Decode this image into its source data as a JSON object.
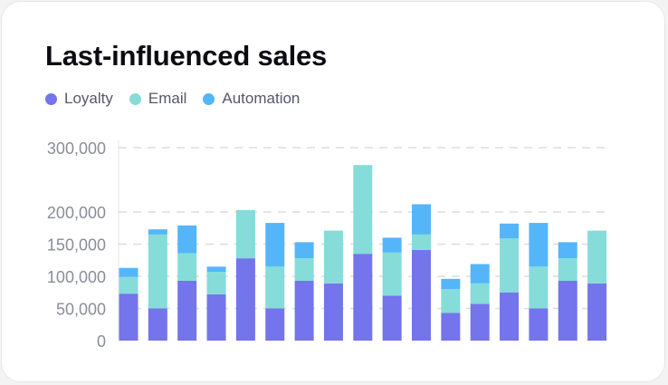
{
  "chart_data": {
    "type": "bar",
    "stacked": true,
    "title": "Last-influenced sales",
    "xlabel": "",
    "ylabel": "",
    "ylim": [
      0,
      300000
    ],
    "y_ticks": [
      0,
      50000,
      100000,
      150000,
      200000,
      300000
    ],
    "y_tick_labels": [
      "0",
      "50,000",
      "100,000",
      "150,000",
      "200,000",
      "300,000"
    ],
    "grid": true,
    "legend_position": "top-left",
    "series": [
      {
        "name": "Loyalty",
        "color": "#7474ec",
        "values": [
          73000,
          50000,
          93000,
          72000,
          128000,
          50000,
          93000,
          89000,
          135000,
          70000,
          141000,
          43000,
          57000,
          75000,
          50000,
          93000,
          89000
        ]
      },
      {
        "name": "Email",
        "color": "#85dcd9",
        "values": [
          26000,
          115000,
          43000,
          35000,
          75000,
          65000,
          35000,
          82000,
          138000,
          67000,
          24000,
          37000,
          32000,
          84000,
          65000,
          35000,
          82000
        ]
      },
      {
        "name": "Automation",
        "color": "#55b5f9",
        "values": [
          14000,
          8000,
          43000,
          8000,
          0,
          68000,
          25000,
          0,
          0,
          23000,
          47000,
          16000,
          30000,
          23000,
          68000,
          25000,
          0
        ]
      }
    ]
  }
}
